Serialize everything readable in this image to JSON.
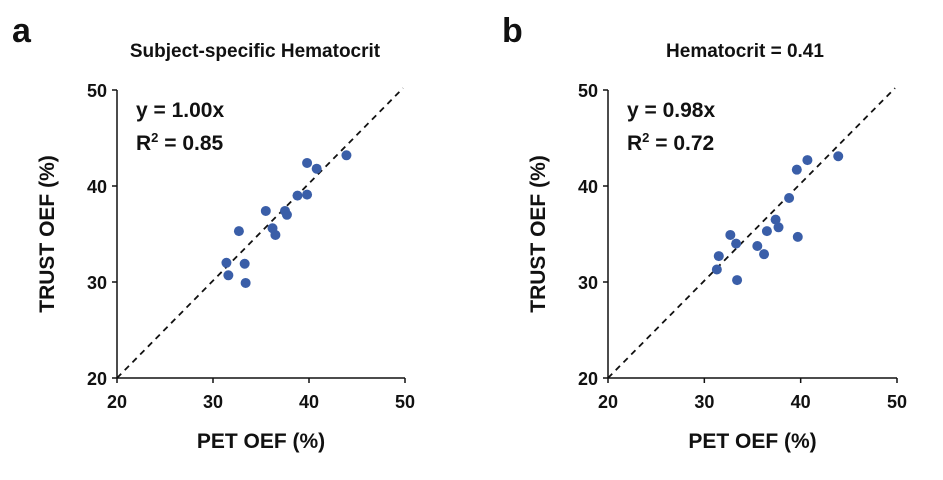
{
  "chart_data": [
    {
      "type": "scatter",
      "panel_label": "a",
      "title": "Subject-specific Hematocrit",
      "xlabel": "PET OEF (%)",
      "ylabel": "TRUST OEF (%)",
      "xlim": [
        20,
        50
      ],
      "ylim": [
        20,
        50
      ],
      "xticks": [
        "20",
        "30",
        "40",
        "50"
      ],
      "yticks": [
        "20",
        "30",
        "40",
        "50"
      ],
      "equation": "y = 1.00x",
      "r2_prefix": "R",
      "r2_sup": "2",
      "r2_value": " = 0.85",
      "identity_line": true,
      "color": "#3a5ea8",
      "points": [
        [
          43.9,
          43.2
        ],
        [
          39.8,
          42.4
        ],
        [
          40.8,
          41.8
        ],
        [
          38.8,
          39.0
        ],
        [
          39.8,
          39.1
        ],
        [
          35.5,
          37.4
        ],
        [
          37.5,
          37.4
        ],
        [
          37.7,
          37.0
        ],
        [
          32.7,
          35.3
        ],
        [
          36.2,
          35.6
        ],
        [
          36.5,
          34.9
        ],
        [
          31.4,
          32.0
        ],
        [
          33.3,
          31.9
        ],
        [
          31.6,
          30.7
        ],
        [
          33.4,
          29.9
        ]
      ]
    },
    {
      "type": "scatter",
      "panel_label": "b",
      "title": "Hematocrit = 0.41",
      "xlabel": "PET OEF (%)",
      "ylabel": "TRUST OEF (%)",
      "xlim": [
        20,
        50
      ],
      "ylim": [
        20,
        50
      ],
      "xticks": [
        "20",
        "30",
        "40",
        "50"
      ],
      "yticks": [
        "20",
        "30",
        "40",
        "50"
      ],
      "equation": "y = 0.98x",
      "r2_prefix": "R",
      "r2_sup": "2",
      "r2_value": " = 0.72",
      "identity_line": true,
      "color": "#3a5ea8",
      "points": [
        [
          43.9,
          43.1
        ],
        [
          40.7,
          42.7
        ],
        [
          39.6,
          41.7
        ],
        [
          38.8,
          38.75
        ],
        [
          37.4,
          36.5
        ],
        [
          37.7,
          35.7
        ],
        [
          36.5,
          35.3
        ],
        [
          39.7,
          34.7
        ],
        [
          32.7,
          34.9
        ],
        [
          33.3,
          34.0
        ],
        [
          35.5,
          33.75
        ],
        [
          36.2,
          32.9
        ],
        [
          31.5,
          32.7
        ],
        [
          31.3,
          31.3
        ],
        [
          33.4,
          30.2
        ]
      ]
    }
  ]
}
